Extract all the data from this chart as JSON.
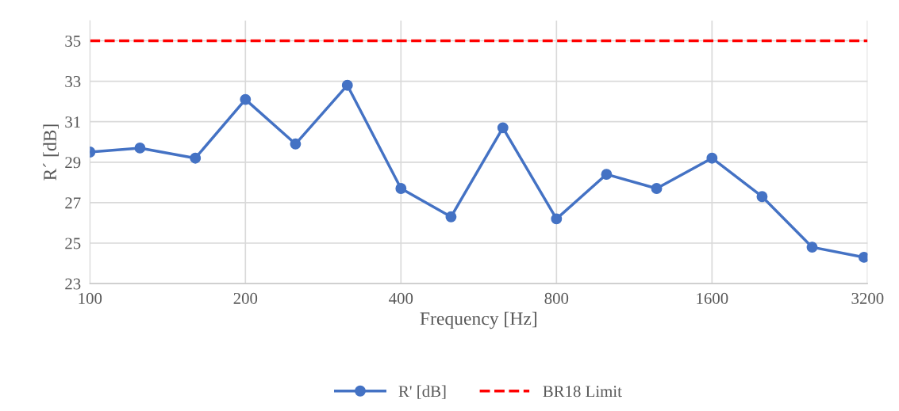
{
  "chart_data": {
    "type": "line",
    "xlabel": "Frequency [Hz]",
    "ylabel": "R´ [dB]",
    "log": "x",
    "x": [
      100,
      125,
      160,
      200,
      250,
      315,
      400,
      500,
      630,
      800,
      1000,
      1250,
      1600,
      2000,
      2500,
      3150
    ],
    "series": [
      {
        "name": "R' [dB]",
        "color": "#4472c4",
        "values": [
          29.5,
          29.7,
          29.2,
          32.1,
          29.9,
          32.8,
          27.7,
          26.3,
          30.7,
          26.2,
          28.4,
          27.7,
          29.2,
          27.3,
          24.8,
          24.3
        ]
      }
    ],
    "ref_lines": [
      {
        "axis": "y",
        "value": 35,
        "label": "BR18 Limit",
        "color": "#ff0000",
        "line_style": "dashed"
      }
    ],
    "xlim": [
      100,
      3200
    ],
    "xticks": [
      100,
      200,
      400,
      800,
      1600,
      3200
    ],
    "ylim": [
      23,
      36
    ],
    "yticks": [
      23,
      25,
      27,
      29,
      31,
      33,
      35
    ],
    "grid": true,
    "legend": "bottom",
    "marker": "circle",
    "line_style": "solid"
  }
}
